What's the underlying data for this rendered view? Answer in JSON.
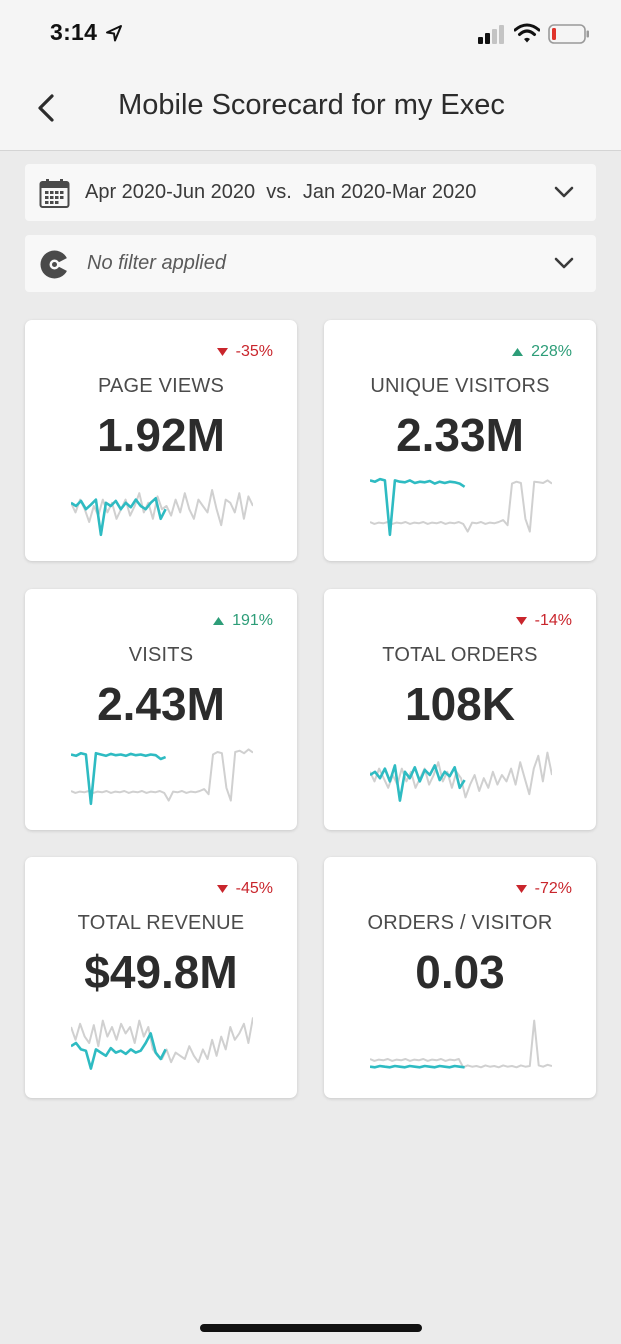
{
  "status_bar": {
    "time": "3:14",
    "icons": [
      "location-arrow-icon",
      "signal-icon",
      "wifi-icon",
      "battery-low-icon"
    ]
  },
  "nav": {
    "title": "Mobile Scorecard for my Exec",
    "back_icon": "chevron-left-icon"
  },
  "filters": {
    "date_range": "Apr 2020-Jun 2020  vs.  Jan 2020-Mar 2020",
    "segment": "No filter applied"
  },
  "colors": {
    "current_series": "#2ebbc2",
    "previous_series": "#d0d0d0",
    "positive": "#2d9d78",
    "negative": "#c9252c"
  },
  "cards": [
    {
      "label": "PAGE VIEWS",
      "value": "1.92M",
      "delta": "-35%",
      "direction": "down",
      "spark_prev": [
        0.55,
        0.4,
        0.6,
        0.45,
        0.25,
        0.5,
        0.35,
        0.6,
        0.4,
        0.55,
        0.3,
        0.45,
        0.6,
        0.35,
        0.5,
        0.7,
        0.4,
        0.55,
        0.3,
        0.65,
        0.45,
        0.5,
        0.35,
        0.6,
        0.4,
        0.7,
        0.45,
        0.3,
        0.6,
        0.5,
        0.4,
        0.75,
        0.45,
        0.2,
        0.6,
        0.55,
        0.4,
        0.7,
        0.3,
        0.65,
        0.5
      ],
      "spark_curr": [
        0.55,
        0.5,
        0.58,
        0.45,
        0.52,
        0.6,
        0.05,
        0.55,
        0.5,
        0.58,
        0.45,
        0.55,
        0.48,
        0.6,
        0.5,
        0.45,
        0.55,
        0.62,
        0.3,
        0.45
      ]
    },
    {
      "label": "UNIQUE VISITORS",
      "value": "2.33M",
      "delta": "228%",
      "direction": "up",
      "spark_prev": [
        0.25,
        0.22,
        0.24,
        0.23,
        0.25,
        0.22,
        0.24,
        0.23,
        0.25,
        0.22,
        0.24,
        0.23,
        0.25,
        0.22,
        0.24,
        0.23,
        0.25,
        0.22,
        0.24,
        0.23,
        0.25,
        0.22,
        0.1,
        0.24,
        0.23,
        0.25,
        0.22,
        0.24,
        0.23,
        0.25,
        0.28,
        0.2,
        0.85,
        0.88,
        0.86,
        0.3,
        0.1,
        0.88,
        0.87,
        0.86,
        0.9,
        0.85
      ],
      "spark_curr": [
        0.9,
        0.88,
        0.92,
        0.9,
        0.05,
        0.9,
        0.88,
        0.87,
        0.9,
        0.86,
        0.88,
        0.87,
        0.89,
        0.85,
        0.88,
        0.86,
        0.88,
        0.87,
        0.85,
        0.8
      ]
    },
    {
      "label": "VISITS",
      "value": "2.43M",
      "delta": "191%",
      "direction": "up",
      "spark_prev": [
        0.25,
        0.22,
        0.24,
        0.23,
        0.25,
        0.22,
        0.24,
        0.23,
        0.25,
        0.22,
        0.24,
        0.23,
        0.25,
        0.22,
        0.24,
        0.23,
        0.25,
        0.22,
        0.24,
        0.23,
        0.25,
        0.22,
        0.1,
        0.24,
        0.23,
        0.25,
        0.22,
        0.24,
        0.23,
        0.25,
        0.28,
        0.2,
        0.82,
        0.86,
        0.84,
        0.3,
        0.1,
        0.86,
        0.88,
        0.84,
        0.9,
        0.85
      ],
      "spark_curr": [
        0.82,
        0.8,
        0.84,
        0.82,
        0.05,
        0.84,
        0.82,
        0.8,
        0.83,
        0.81,
        0.82,
        0.8,
        0.83,
        0.81,
        0.82,
        0.8,
        0.82,
        0.81,
        0.75,
        0.78
      ]
    },
    {
      "label": "TOTAL ORDERS",
      "value": "108K",
      "delta": "-14%",
      "direction": "down",
      "spark_prev": [
        0.55,
        0.4,
        0.6,
        0.45,
        0.3,
        0.5,
        0.35,
        0.6,
        0.4,
        0.55,
        0.3,
        0.45,
        0.6,
        0.35,
        0.5,
        0.7,
        0.4,
        0.55,
        0.3,
        0.55,
        0.45,
        0.15,
        0.35,
        0.5,
        0.25,
        0.45,
        0.3,
        0.55,
        0.35,
        0.5,
        0.4,
        0.6,
        0.35,
        0.7,
        0.45,
        0.2,
        0.6,
        0.8,
        0.4,
        0.85,
        0.5
      ],
      "spark_curr": [
        0.5,
        0.55,
        0.45,
        0.6,
        0.4,
        0.65,
        0.1,
        0.55,
        0.45,
        0.62,
        0.4,
        0.58,
        0.5,
        0.65,
        0.42,
        0.55,
        0.48,
        0.62,
        0.3,
        0.42
      ]
    },
    {
      "label": "TOTAL REVENUE",
      "value": "$49.8M",
      "delta": "-45%",
      "direction": "down",
      "spark_prev": [
        0.75,
        0.55,
        0.8,
        0.6,
        0.5,
        0.78,
        0.45,
        0.85,
        0.6,
        0.75,
        0.55,
        0.8,
        0.65,
        0.75,
        0.5,
        0.85,
        0.6,
        0.75,
        0.4,
        0.3,
        0.25,
        0.4,
        0.2,
        0.35,
        0.3,
        0.25,
        0.45,
        0.3,
        0.2,
        0.4,
        0.25,
        0.55,
        0.3,
        0.6,
        0.4,
        0.75,
        0.55,
        0.65,
        0.8,
        0.5,
        0.9
      ],
      "spark_curr": [
        0.45,
        0.5,
        0.4,
        0.38,
        0.1,
        0.4,
        0.35,
        0.3,
        0.42,
        0.35,
        0.38,
        0.33,
        0.4,
        0.35,
        0.38,
        0.5,
        0.65,
        0.35,
        0.25,
        0.4
      ]
    },
    {
      "label": "ORDERS / VISITOR",
      "value": "0.03",
      "delta": "-72%",
      "direction": "down",
      "spark_prev": [
        0.25,
        0.22,
        0.24,
        0.23,
        0.25,
        0.22,
        0.24,
        0.23,
        0.25,
        0.22,
        0.24,
        0.23,
        0.25,
        0.22,
        0.24,
        0.23,
        0.25,
        0.22,
        0.24,
        0.23,
        0.25,
        0.12,
        0.15,
        0.13,
        0.14,
        0.12,
        0.15,
        0.13,
        0.14,
        0.12,
        0.15,
        0.13,
        0.14,
        0.12,
        0.15,
        0.13,
        0.14,
        0.85,
        0.15,
        0.13,
        0.16,
        0.14
      ],
      "spark_curr": [
        0.13,
        0.12,
        0.14,
        0.13,
        0.12,
        0.14,
        0.13,
        0.12,
        0.14,
        0.13,
        0.12,
        0.14,
        0.13,
        0.12,
        0.14,
        0.13,
        0.12,
        0.14,
        0.13,
        0.12
      ]
    }
  ]
}
